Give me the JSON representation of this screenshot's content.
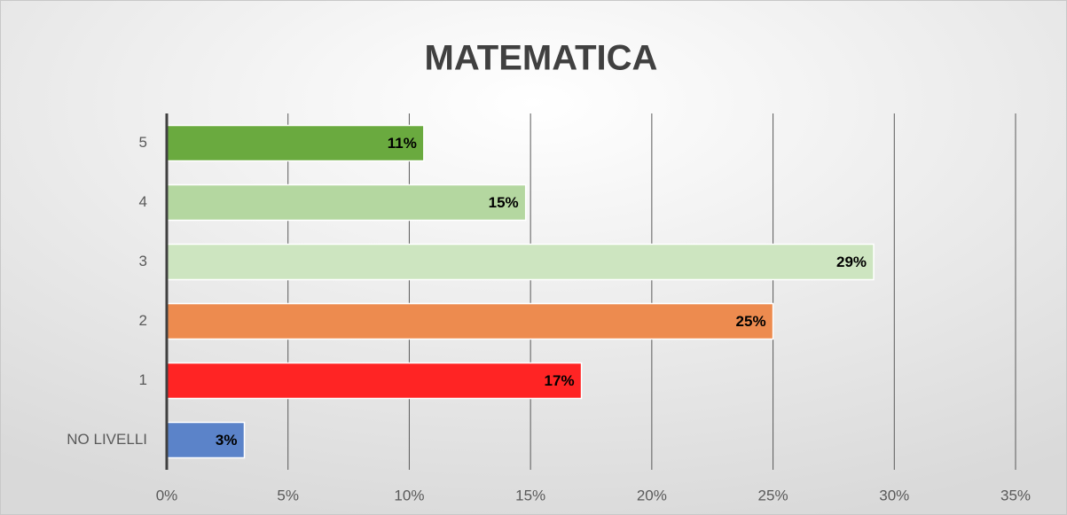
{
  "chart_data": {
    "type": "bar",
    "orientation": "horizontal",
    "title": "MATEMATICA",
    "categories": [
      "NO LIVELLI",
      "1",
      "2",
      "3",
      "4",
      "5"
    ],
    "values": [
      3.2,
      17.1,
      25.0,
      29.15,
      14.8,
      10.6
    ],
    "value_labels": [
      "3%",
      "17%",
      "25%",
      "29%",
      "15%",
      "11%"
    ],
    "colors": [
      "#5b83c9",
      "#ff2424",
      "#ed8b4f",
      "#cde5c0",
      "#b4d7a0",
      "#6aaa3f"
    ],
    "xlim": [
      0,
      35
    ],
    "xticks": [
      {
        "value": 0,
        "label": "0%"
      },
      {
        "value": 5,
        "label": "5%"
      },
      {
        "value": 10,
        "label": "10%"
      },
      {
        "value": 15,
        "label": "15%"
      },
      {
        "value": 20,
        "label": "20%"
      },
      {
        "value": 25,
        "label": "25%"
      },
      {
        "value": 30,
        "label": "30%"
      },
      {
        "value": 35,
        "label": "35%"
      }
    ],
    "grid": true
  }
}
